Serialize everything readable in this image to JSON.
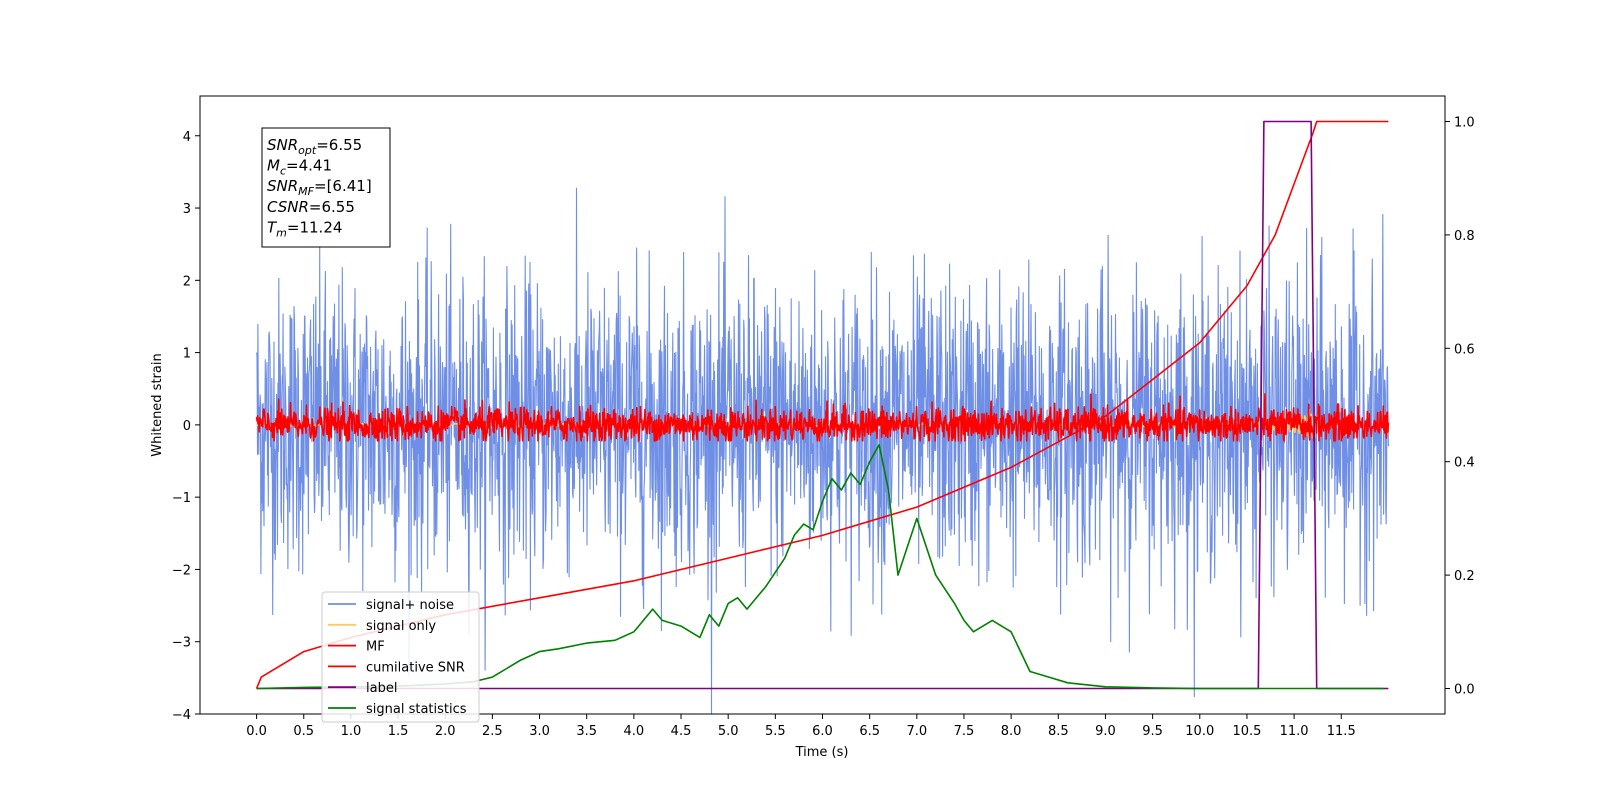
{
  "chart_data": {
    "type": "line",
    "xlabel": "Time (s)",
    "ylabel": "Whitened strain",
    "xlim": [
      -0.6,
      12.6
    ],
    "ylim_left": [
      -4,
      4.55
    ],
    "ylim_right": [
      -0.045,
      1.045
    ],
    "x_ticks": [
      "0.0",
      "0.5",
      "1.0",
      "1.5",
      "2.0",
      "2.5",
      "3.0",
      "3.5",
      "4.0",
      "4.5",
      "5.0",
      "5.5",
      "6.0",
      "6.5",
      "7.0",
      "7.5",
      "8.0",
      "8.5",
      "9.0",
      "9.5",
      "10.0",
      "10.5",
      "11.0",
      "11.5"
    ],
    "y_ticks_left": [
      "−4",
      "−3",
      "−2",
      "−1",
      "0",
      "1",
      "2",
      "3",
      "4"
    ],
    "y_ticks_right": [
      "0.0",
      "0.2",
      "0.4",
      "0.6",
      "0.8",
      "1.0"
    ],
    "annotation": {
      "lines": [
        {
          "base": "SNR",
          "sub": "opt",
          "value": "=6.55"
        },
        {
          "base": "M",
          "sub": "c",
          "value": "=4.41"
        },
        {
          "base": "SNR",
          "sub": "MF",
          "value": "=[6.41]"
        },
        {
          "base": "CSNR",
          "sub": "",
          "value": "=6.55"
        },
        {
          "base": "T",
          "sub": "m",
          "value": "=11.24"
        }
      ]
    },
    "legend": {
      "placement": "lower-left",
      "entries": [
        {
          "label": "signal+ noise",
          "color": "#6f8fe6"
        },
        {
          "label": "signal only",
          "color": "#ffc864"
        },
        {
          "label": "MF",
          "color": "#ff0000"
        },
        {
          "label": "cumilative SNR",
          "color": "#ff0000"
        },
        {
          "label": "label",
          "color": "#800080"
        },
        {
          "label": "signal statistics",
          "color": "#008000"
        }
      ]
    },
    "series": [
      {
        "name": "signal+ noise",
        "axis": "left",
        "kind": "noise",
        "x_range": [
          0,
          12
        ],
        "std": 1.0,
        "color": "#6f8fe6"
      },
      {
        "name": "signal only",
        "axis": "left",
        "kind": "chirp",
        "x_range": [
          0,
          11.24
        ],
        "color": "#ffc864"
      },
      {
        "name": "MF",
        "axis": "left",
        "kind": "noise",
        "x_range": [
          0,
          12
        ],
        "std": 0.12,
        "color": "#ff0000"
      },
      {
        "name": "cumilative SNR",
        "axis": "right",
        "color": "#ff0000",
        "x": [
          0,
          0.05,
          0.5,
          1,
          2,
          3,
          4,
          5,
          6,
          7,
          8,
          9,
          10,
          10.5,
          10.8,
          11,
          11.2,
          11.24,
          12
        ],
        "y": [
          0.0,
          0.02,
          0.065,
          0.09,
          0.13,
          0.16,
          0.19,
          0.23,
          0.27,
          0.32,
          0.39,
          0.48,
          0.61,
          0.71,
          0.8,
          0.89,
          0.98,
          1.0,
          1.0
        ]
      },
      {
        "name": "label",
        "axis": "right",
        "color": "#800080",
        "x": [
          0,
          10.62,
          10.68,
          11.18,
          11.24,
          12
        ],
        "y": [
          0,
          0,
          1,
          1,
          0,
          0
        ]
      },
      {
        "name": "signal statistics",
        "axis": "right",
        "color": "#008000",
        "x": [
          0,
          0.5,
          1,
          1.5,
          2,
          2.3,
          2.5,
          2.8,
          3,
          3.2,
          3.5,
          3.8,
          4.0,
          4.2,
          4.3,
          4.5,
          4.7,
          4.8,
          4.9,
          5.0,
          5.1,
          5.2,
          5.4,
          5.6,
          5.7,
          5.8,
          5.9,
          6.0,
          6.1,
          6.2,
          6.3,
          6.4,
          6.5,
          6.6,
          6.7,
          6.8,
          6.9,
          7.0,
          7.2,
          7.4,
          7.5,
          7.6,
          7.8,
          8.0,
          8.2,
          8.4,
          8.6,
          9.0,
          9.5,
          10,
          11,
          11.95
        ],
        "y": [
          0,
          0.002,
          0.003,
          0.004,
          0.008,
          0.012,
          0.02,
          0.05,
          0.065,
          0.07,
          0.08,
          0.085,
          0.1,
          0.14,
          0.12,
          0.11,
          0.09,
          0.13,
          0.11,
          0.15,
          0.16,
          0.14,
          0.18,
          0.23,
          0.27,
          0.29,
          0.28,
          0.33,
          0.37,
          0.35,
          0.38,
          0.36,
          0.4,
          0.43,
          0.35,
          0.2,
          0.25,
          0.3,
          0.2,
          0.15,
          0.12,
          0.1,
          0.12,
          0.1,
          0.03,
          0.02,
          0.01,
          0.003,
          0.001,
          0,
          0,
          0
        ]
      }
    ]
  }
}
